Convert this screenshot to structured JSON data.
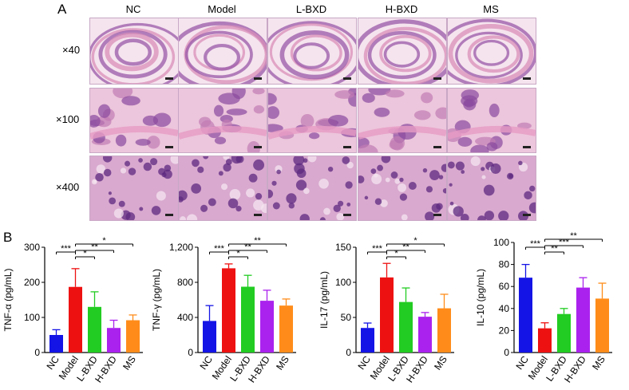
{
  "panel_a": {
    "label": "A",
    "columns": [
      "NC",
      "Model",
      "L-BXD",
      "H-BXD",
      "MS"
    ],
    "rows": [
      "×40",
      "×100",
      "×400"
    ]
  },
  "panel_b": {
    "label": "B"
  },
  "colors": {
    "NC": "#1414e6",
    "Model": "#ee1111",
    "L-BXD": "#22cc22",
    "H-BXD": "#aa22ee",
    "MS": "#ff8c1a",
    "he_pink": "#e8b2d2",
    "he_purple": "#8a4a9e",
    "he_light": "#f3dce9"
  },
  "chart_data": [
    {
      "type": "bar",
      "ylabel": "TNF-α (pg/mL)",
      "categories": [
        "NC",
        "Model",
        "L-BXD",
        "H-BXD",
        "MS"
      ],
      "values": [
        50,
        187,
        130,
        70,
        92
      ],
      "errors": [
        15,
        52,
        43,
        22,
        15
      ],
      "ylim": [
        0,
        300
      ],
      "yticks": [
        0,
        100,
        200,
        300
      ],
      "significance": [
        {
          "from": 0,
          "to": 1,
          "label": "***"
        },
        {
          "from": 1,
          "to": 2,
          "label": "*"
        },
        {
          "from": 1,
          "to": 3,
          "label": "**"
        },
        {
          "from": 1,
          "to": 4,
          "label": "*"
        }
      ]
    },
    {
      "type": "bar",
      "ylabel": "TNF-γ (pg/mL)",
      "categories": [
        "NC",
        "Model",
        "L-BXD",
        "H-BXD",
        "MS"
      ],
      "values": [
        360,
        960,
        750,
        590,
        535
      ],
      "errors": [
        175,
        50,
        130,
        120,
        75
      ],
      "ylim": [
        0,
        1200
      ],
      "yticks": [
        0,
        400,
        800,
        1200
      ],
      "significance": [
        {
          "from": 0,
          "to": 1,
          "label": "***"
        },
        {
          "from": 1,
          "to": 2,
          "label": "*"
        },
        {
          "from": 1,
          "to": 3,
          "label": "**"
        },
        {
          "from": 1,
          "to": 4,
          "label": "**"
        }
      ]
    },
    {
      "type": "bar",
      "ylabel": "IL-17 (pg/mL)",
      "categories": [
        "NC",
        "Model",
        "L-BXD",
        "H-BXD",
        "MS"
      ],
      "values": [
        35,
        107,
        72,
        51,
        63
      ],
      "errors": [
        7,
        20,
        20,
        6,
        20
      ],
      "ylim": [
        0,
        150
      ],
      "yticks": [
        0,
        50,
        100,
        150
      ],
      "significance": [
        {
          "from": 0,
          "to": 1,
          "label": "***"
        },
        {
          "from": 1,
          "to": 2,
          "label": "*"
        },
        {
          "from": 1,
          "to": 3,
          "label": "**"
        },
        {
          "from": 1,
          "to": 4,
          "label": "*"
        }
      ]
    },
    {
      "type": "bar",
      "ylabel": "IL-10 (pg/mL)",
      "categories": [
        "NC",
        "Model",
        "L-BXD",
        "H-BXD",
        "MS"
      ],
      "values": [
        68,
        22,
        35,
        59,
        49
      ],
      "errors": [
        12,
        5,
        5,
        9,
        14
      ],
      "ylim": [
        0,
        100
      ],
      "yticks": [
        0,
        20,
        40,
        60,
        80,
        100
      ],
      "significance": [
        {
          "from": 0,
          "to": 1,
          "label": "***"
        },
        {
          "from": 1,
          "to": 2,
          "label": "**"
        },
        {
          "from": 1,
          "to": 3,
          "label": "***"
        },
        {
          "from": 1,
          "to": 4,
          "label": "**"
        }
      ]
    }
  ]
}
